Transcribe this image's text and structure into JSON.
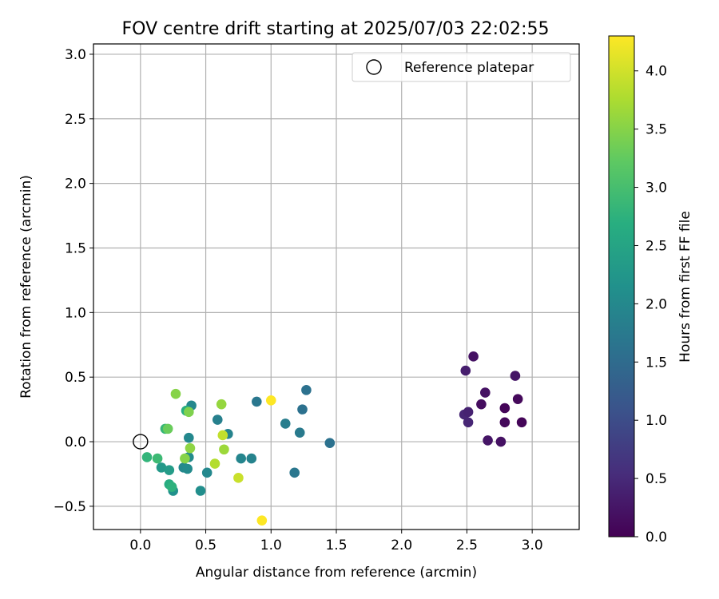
{
  "chart_data": {
    "type": "scatter",
    "title": "FOV centre drift starting at 2025/07/03 22:02:55",
    "xlabel": "Angular distance from reference (arcmin)",
    "ylabel": "Rotation from reference (arcmin)",
    "xlim": [
      -0.36,
      3.36
    ],
    "ylim": [
      -0.68,
      3.08
    ],
    "xticks": [
      0.0,
      0.5,
      1.0,
      1.5,
      2.0,
      2.5,
      3.0
    ],
    "yticks": [
      -0.5,
      0.0,
      0.5,
      1.0,
      1.5,
      2.0,
      2.5,
      3.0
    ],
    "xtick_labels": [
      "0.0",
      "0.5",
      "1.0",
      "1.5",
      "2.0",
      "2.5",
      "3.0"
    ],
    "ytick_labels": [
      "−0.5",
      "0.0",
      "0.5",
      "1.0",
      "1.5",
      "2.0",
      "2.5",
      "3.0"
    ],
    "grid": true,
    "legend": {
      "position": "top-right",
      "entries": [
        {
          "label": "Reference platepar",
          "marker": "open-circle"
        }
      ]
    },
    "reference_point": {
      "x": 0.0,
      "y": 0.0
    },
    "colorbar": {
      "label": "Hours from first FF file",
      "colormap": "viridis",
      "range": [
        0.0,
        4.3
      ],
      "ticks": [
        0.0,
        0.5,
        1.0,
        1.5,
        2.0,
        2.5,
        3.0,
        3.5,
        4.0
      ],
      "tick_labels": [
        "0.0",
        "0.5",
        "1.0",
        "1.5",
        "2.0",
        "2.5",
        "3.0",
        "3.5",
        "4.0"
      ]
    },
    "points": [
      {
        "x": 2.55,
        "y": 0.66,
        "t": 0.2
      },
      {
        "x": 2.49,
        "y": 0.55,
        "t": 0.35
      },
      {
        "x": 2.87,
        "y": 0.51,
        "t": 0.25
      },
      {
        "x": 2.64,
        "y": 0.38,
        "t": 0.2
      },
      {
        "x": 2.89,
        "y": 0.33,
        "t": 0.1
      },
      {
        "x": 2.61,
        "y": 0.29,
        "t": 0.15
      },
      {
        "x": 2.79,
        "y": 0.26,
        "t": 0.05
      },
      {
        "x": 2.48,
        "y": 0.21,
        "t": 0.45
      },
      {
        "x": 2.51,
        "y": 0.23,
        "t": 0.4
      },
      {
        "x": 2.51,
        "y": 0.15,
        "t": 0.45
      },
      {
        "x": 2.79,
        "y": 0.15,
        "t": 0.1
      },
      {
        "x": 2.92,
        "y": 0.15,
        "t": 0.05
      },
      {
        "x": 2.66,
        "y": 0.01,
        "t": 0.25
      },
      {
        "x": 2.76,
        "y": 0.0,
        "t": 0.2
      },
      {
        "x": 1.27,
        "y": 0.4,
        "t": 1.6
      },
      {
        "x": 0.89,
        "y": 0.31,
        "t": 1.7
      },
      {
        "x": 1.24,
        "y": 0.25,
        "t": 1.6
      },
      {
        "x": 1.11,
        "y": 0.14,
        "t": 1.8
      },
      {
        "x": 1.22,
        "y": 0.07,
        "t": 1.75
      },
      {
        "x": 1.45,
        "y": -0.01,
        "t": 1.6
      },
      {
        "x": 1.18,
        "y": -0.24,
        "t": 1.7
      },
      {
        "x": 0.85,
        "y": -0.13,
        "t": 1.9
      },
      {
        "x": 0.77,
        "y": -0.13,
        "t": 1.95
      },
      {
        "x": 0.59,
        "y": 0.17,
        "t": 1.85
      },
      {
        "x": 0.67,
        "y": 0.06,
        "t": 1.9
      },
      {
        "x": 0.39,
        "y": 0.28,
        "t": 2.0
      },
      {
        "x": 0.37,
        "y": 0.03,
        "t": 2.0
      },
      {
        "x": 0.37,
        "y": -0.12,
        "t": 2.05
      },
      {
        "x": 0.33,
        "y": -0.2,
        "t": 2.0
      },
      {
        "x": 0.36,
        "y": -0.21,
        "t": 2.05
      },
      {
        "x": 0.51,
        "y": -0.24,
        "t": 2.0
      },
      {
        "x": 0.46,
        "y": -0.38,
        "t": 2.1
      },
      {
        "x": 0.25,
        "y": -0.38,
        "t": 2.15
      },
      {
        "x": 0.16,
        "y": -0.2,
        "t": 2.3
      },
      {
        "x": 0.22,
        "y": -0.22,
        "t": 2.35
      },
      {
        "x": 0.22,
        "y": -0.33,
        "t": 2.65
      },
      {
        "x": 0.24,
        "y": -0.35,
        "t": 2.75
      },
      {
        "x": 0.05,
        "y": -0.12,
        "t": 2.8
      },
      {
        "x": 0.13,
        "y": -0.13,
        "t": 2.9
      },
      {
        "x": 0.19,
        "y": 0.1,
        "t": 2.85
      },
      {
        "x": 0.35,
        "y": 0.24,
        "t": 2.7
      },
      {
        "x": 0.21,
        "y": 0.1,
        "t": 3.3
      },
      {
        "x": 0.27,
        "y": 0.37,
        "t": 3.5
      },
      {
        "x": 0.37,
        "y": 0.23,
        "t": 3.45
      },
      {
        "x": 0.34,
        "y": -0.13,
        "t": 3.5
      },
      {
        "x": 0.38,
        "y": -0.05,
        "t": 3.55
      },
      {
        "x": 0.62,
        "y": 0.29,
        "t": 3.6
      },
      {
        "x": 0.64,
        "y": -0.06,
        "t": 3.65
      },
      {
        "x": 0.57,
        "y": -0.17,
        "t": 3.8
      },
      {
        "x": 0.63,
        "y": 0.05,
        "t": 3.9
      },
      {
        "x": 0.75,
        "y": -0.28,
        "t": 3.95
      },
      {
        "x": 1.0,
        "y": 0.32,
        "t": 4.3
      },
      {
        "x": 0.93,
        "y": -0.61,
        "t": 4.3
      }
    ]
  }
}
